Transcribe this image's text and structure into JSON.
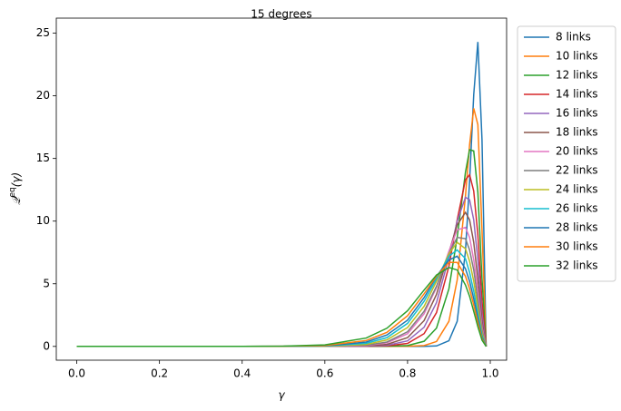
{
  "chart_data": {
    "type": "line",
    "title": "15 degrees",
    "xlabel": "γ",
    "ylabel": {
      "symbol": "𝒬",
      "superscript": "eq",
      "argument": "(γ)"
    },
    "x": [
      0,
      0.2,
      0.4,
      0.5,
      0.6,
      0.7,
      0.75,
      0.8,
      0.84,
      0.87,
      0.9,
      0.92,
      0.94,
      0.95,
      0.96,
      0.97,
      0.98,
      0.99
    ],
    "series": [
      {
        "name": "8 links",
        "color": "#1f77b4",
        "values": [
          0,
          0,
          0,
          0,
          0,
          0,
          0,
          0,
          0,
          0.04,
          0.45,
          2.0,
          7.6,
          13.2,
          20.1,
          24.3,
          16.5,
          0
        ]
      },
      {
        "name": "10 links",
        "color": "#ff7f0e",
        "values": [
          0,
          0,
          0,
          0,
          0,
          0,
          0,
          0.01,
          0.07,
          0.39,
          2.0,
          5.3,
          12.0,
          16.1,
          19.0,
          17.7,
          9.3,
          0
        ]
      },
      {
        "name": "12 links",
        "color": "#2ca02c",
        "values": [
          0,
          0,
          0,
          0,
          0,
          0,
          0.01,
          0.07,
          0.41,
          1.46,
          4.6,
          8.7,
          13.9,
          15.7,
          15.6,
          12.3,
          5.4,
          0
        ]
      },
      {
        "name": "14 links",
        "color": "#d62728",
        "values": [
          0,
          0,
          0,
          0,
          0,
          0.01,
          0.04,
          0.24,
          1.02,
          2.7,
          6.4,
          10.1,
          13.3,
          13.7,
          12.4,
          8.9,
          3.6,
          0
        ]
      },
      {
        "name": "16 links",
        "color": "#9467bd",
        "values": [
          0,
          0,
          0,
          0,
          0,
          0.02,
          0.09,
          0.44,
          1.53,
          3.5,
          7.1,
          10.0,
          11.9,
          11.7,
          10.1,
          6.9,
          2.6,
          0
        ]
      },
      {
        "name": "18 links",
        "color": "#8c564b",
        "values": [
          0,
          0,
          0,
          0,
          0,
          0.04,
          0.16,
          0.7,
          2.06,
          4.15,
          7.5,
          9.7,
          10.7,
          10.1,
          8.3,
          5.4,
          2.0,
          0
        ]
      },
      {
        "name": "20 links",
        "color": "#e377c2",
        "values": [
          0,
          0,
          0,
          0,
          0,
          0.07,
          0.28,
          1.01,
          2.6,
          4.7,
          7.6,
          9.3,
          9.5,
          8.7,
          6.9,
          4.4,
          1.55,
          0
        ]
      },
      {
        "name": "22 links",
        "color": "#7f7f7f",
        "values": [
          0,
          0,
          0,
          0,
          0.01,
          0.1,
          0.35,
          1.17,
          2.8,
          4.8,
          7.4,
          8.7,
          8.6,
          7.7,
          6.1,
          3.7,
          1.3,
          0
        ]
      },
      {
        "name": "24 links",
        "color": "#bcbd22",
        "values": [
          0,
          0,
          0,
          0,
          0.01,
          0.16,
          0.52,
          1.51,
          3.2,
          5.2,
          7.4,
          8.3,
          7.8,
          6.8,
          5.2,
          3.1,
          1.07,
          0
        ]
      },
      {
        "name": "26 links",
        "color": "#17becf",
        "values": [
          0,
          0,
          0,
          0,
          0.03,
          0.25,
          0.7,
          1.84,
          3.6,
          5.4,
          7.2,
          7.7,
          7.0,
          5.9,
          4.4,
          2.6,
          0.87,
          0
        ]
      },
      {
        "name": "28 links",
        "color": "#1f77b4",
        "values": [
          0,
          0,
          0,
          0.01,
          0.04,
          0.35,
          0.91,
          2.1,
          3.9,
          5.6,
          6.9,
          7.2,
          6.2,
          5.2,
          3.8,
          2.2,
          0.72,
          0
        ]
      },
      {
        "name": "30 links",
        "color": "#ff7f0e",
        "values": [
          0,
          0,
          0,
          0.01,
          0.07,
          0.47,
          1.12,
          2.45,
          4.2,
          5.6,
          6.7,
          6.7,
          5.6,
          4.6,
          3.3,
          1.9,
          0.61,
          0
        ]
      },
      {
        "name": "32 links",
        "color": "#2ca02c",
        "values": [
          0,
          0,
          0,
          0.02,
          0.12,
          0.67,
          1.45,
          2.85,
          4.5,
          5.7,
          6.3,
          6.1,
          4.9,
          4.0,
          2.8,
          1.57,
          0.5,
          0
        ]
      }
    ],
    "xlim": [
      -0.0495,
      1.0395
    ],
    "xticks": [
      {
        "value": 0,
        "label": "0.0"
      },
      {
        "value": 0.2,
        "label": "0.2"
      },
      {
        "value": 0.4,
        "label": "0.4"
      },
      {
        "value": 0.6,
        "label": "0.6"
      },
      {
        "value": 0.8,
        "label": "0.8"
      },
      {
        "value": 1,
        "label": "1.0"
      }
    ],
    "ylim": [
      -1.1,
      26.2
    ],
    "yticks": [
      0,
      5,
      10,
      15,
      20,
      25
    ],
    "grid": false,
    "legend": "outside-right"
  }
}
